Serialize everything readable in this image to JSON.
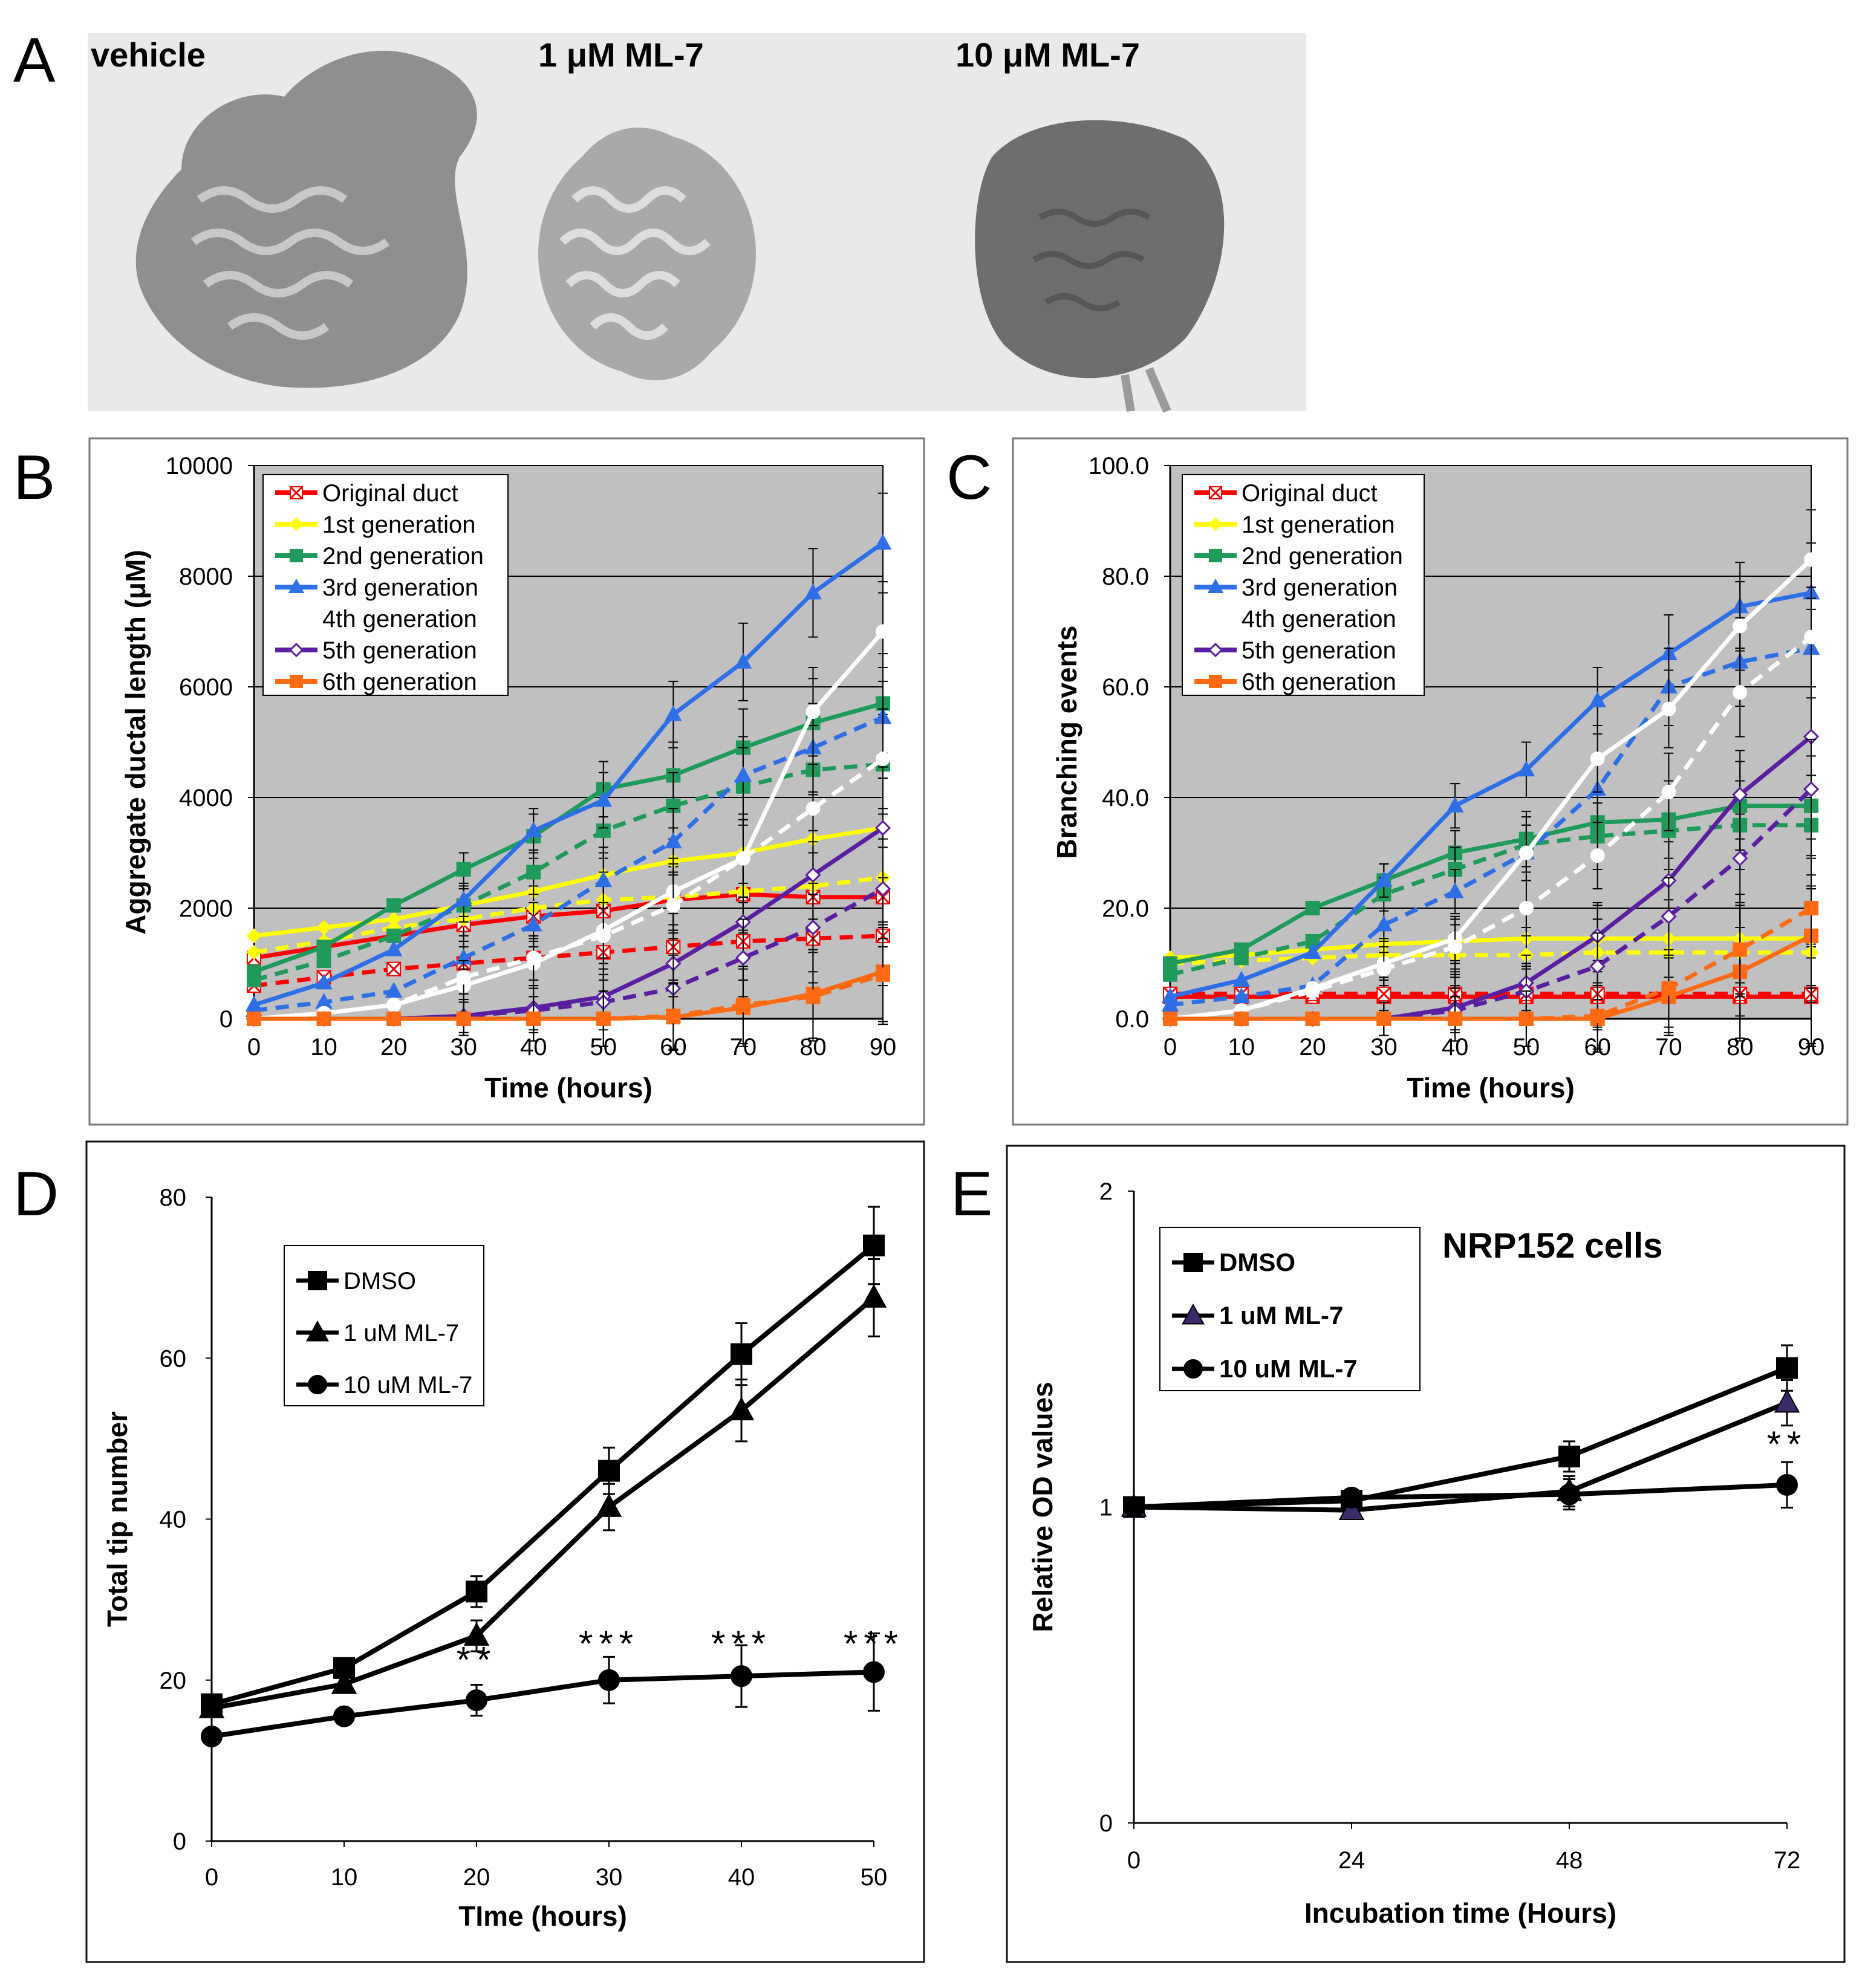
{
  "panels": {
    "A": {
      "label": "A",
      "images": [
        {
          "caption": "vehicle",
          "tone": "#8f8f8f"
        },
        {
          "caption": "1 μM ML-7",
          "tone": "#a9a9a9"
        },
        {
          "caption": "10 μM ML-7",
          "tone": "#6e6e6e"
        }
      ]
    },
    "B": {
      "label": "B"
    },
    "C": {
      "label": "C"
    },
    "D": {
      "label": "D"
    },
    "E": {
      "label": "E",
      "annotation": "NRP152 cells"
    }
  },
  "colors": {
    "plot_bg": "#c0c0c0",
    "original": "#ff0000",
    "gen1": "#ffff00",
    "gen2": "#1f9a5a",
    "gen3": "#2f6fe6",
    "gen4": "#ffffff",
    "gen5": "#5a1fa0",
    "gen6": "#ff6a13"
  },
  "chart_data": [
    {
      "id": "B",
      "type": "line",
      "title": "",
      "xlabel": "Time (hours)",
      "ylabel": "Aggregate ductal length (μM)",
      "x": [
        0,
        10,
        20,
        30,
        40,
        50,
        60,
        70,
        80,
        90
      ],
      "xticks": [
        "0",
        "10",
        "20",
        "30",
        "40",
        "50",
        "60",
        "70",
        "80",
        "90"
      ],
      "ylim": [
        0,
        10000
      ],
      "yticks": [
        "0",
        "2000",
        "4000",
        "6000",
        "8000",
        "10000"
      ],
      "grid": true,
      "legend": "top-left",
      "series": [
        {
          "name": "Original duct",
          "color": "original",
          "marker": "x",
          "style": "solid",
          "values": [
            1100,
            1300,
            1500,
            1700,
            1850,
            1950,
            2150,
            2250,
            2200,
            2200
          ]
        },
        {
          "name": "Original duct (dashed)",
          "color": "original",
          "marker": "x",
          "style": "dashed",
          "values": [
            600,
            750,
            900,
            1000,
            1100,
            1200,
            1300,
            1400,
            1450,
            1500
          ]
        },
        {
          "name": "1st generation",
          "color": "gen1",
          "marker": "diamond",
          "style": "solid",
          "values": [
            1500,
            1650,
            1800,
            2050,
            2300,
            2600,
            2850,
            3000,
            3250,
            3450
          ]
        },
        {
          "name": "1st generation (dashed)",
          "color": "gen1",
          "marker": "diamond",
          "style": "dashed",
          "values": [
            1200,
            1400,
            1650,
            1800,
            2000,
            2150,
            2200,
            2300,
            2400,
            2550
          ]
        },
        {
          "name": "2nd generation",
          "color": "gen2",
          "marker": "square",
          "style": "solid",
          "values": [
            850,
            1300,
            2050,
            2700,
            3300,
            4150,
            4400,
            4900,
            5350,
            5700
          ]
        },
        {
          "name": "2nd generation (dashed)",
          "color": "gen2",
          "marker": "square",
          "style": "dashed",
          "values": [
            700,
            1050,
            1500,
            2050,
            2650,
            3400,
            3850,
            4200,
            4500,
            4600
          ]
        },
        {
          "name": "3rd generation",
          "color": "gen3",
          "marker": "triangle",
          "style": "solid",
          "values": [
            250,
            650,
            1250,
            2150,
            3400,
            3950,
            5500,
            6450,
            7700,
            8600
          ]
        },
        {
          "name": "3rd generation (dashed)",
          "color": "gen3",
          "marker": "triangle",
          "style": "dashed",
          "values": [
            150,
            300,
            500,
            1100,
            1700,
            2500,
            3200,
            4400,
            4900,
            5450
          ]
        },
        {
          "name": "4th generation",
          "color": "gen4",
          "marker": "circle",
          "style": "solid",
          "values": [
            0,
            100,
            250,
            600,
            1000,
            1600,
            2300,
            2900,
            5550,
            7000
          ]
        },
        {
          "name": "4th generation (dashed)",
          "color": "gen4",
          "marker": "circle",
          "style": "dashed",
          "values": [
            0,
            100,
            250,
            750,
            1100,
            1500,
            2050,
            2900,
            3800,
            4700
          ]
        },
        {
          "name": "5th generation",
          "color": "gen5",
          "marker": "opendiamond",
          "style": "solid",
          "values": [
            0,
            0,
            0,
            50,
            200,
            400,
            1000,
            1750,
            2600,
            3450
          ]
        },
        {
          "name": "5th generation (dashed)",
          "color": "gen5",
          "marker": "opendiamond",
          "style": "dashed",
          "values": [
            0,
            0,
            0,
            50,
            150,
            300,
            550,
            1100,
            1650,
            2350
          ]
        },
        {
          "name": "6th generation",
          "color": "gen6",
          "marker": "square",
          "style": "solid",
          "values": [
            0,
            0,
            0,
            0,
            0,
            0,
            30,
            200,
            450,
            850
          ]
        },
        {
          "name": "6th generation (dashed)",
          "color": "gen6",
          "marker": "square",
          "style": "dashed",
          "values": [
            0,
            0,
            0,
            0,
            0,
            0,
            50,
            250,
            400,
            800
          ]
        }
      ]
    },
    {
      "id": "C",
      "type": "line",
      "title": "",
      "xlabel": "Time (hours)",
      "ylabel": "Branching events",
      "x": [
        0,
        10,
        20,
        30,
        40,
        50,
        60,
        70,
        80,
        90
      ],
      "xticks": [
        "0",
        "10",
        "20",
        "30",
        "40",
        "50",
        "60",
        "70",
        "80",
        "90"
      ],
      "ylim": [
        0,
        100
      ],
      "yticks": [
        "0.0",
        "20.0",
        "40.0",
        "60.0",
        "80.0",
        "100.0"
      ],
      "grid": true,
      "legend": "top-left",
      "series": [
        {
          "name": "Original duct",
          "color": "original",
          "marker": "x",
          "style": "solid",
          "values": [
            4,
            4,
            4,
            4,
            4,
            4,
            4,
            4,
            4,
            4
          ]
        },
        {
          "name": "Original duct (dashed)",
          "color": "original",
          "marker": "x",
          "style": "dashed",
          "values": [
            4.5,
            4.5,
            4.5,
            4.5,
            4.5,
            4.5,
            4.5,
            4.5,
            4.5,
            4.5
          ]
        },
        {
          "name": "1st generation",
          "color": "gen1",
          "marker": "diamond",
          "style": "solid",
          "values": [
            11,
            11.5,
            12.5,
            13.5,
            14,
            14.5,
            14.5,
            14.5,
            14.5,
            14.5
          ]
        },
        {
          "name": "1st generation (dashed)",
          "color": "gen1",
          "marker": "diamond",
          "style": "dashed",
          "values": [
            10,
            10.5,
            11,
            11.5,
            11.5,
            11.5,
            12,
            12,
            12,
            12
          ]
        },
        {
          "name": "2nd generation",
          "color": "gen2",
          "marker": "square",
          "style": "solid",
          "values": [
            10,
            12.5,
            20,
            25,
            30,
            32.5,
            35.5,
            36,
            38.5,
            38.5
          ]
        },
        {
          "name": "2nd generation (dashed)",
          "color": "gen2",
          "marker": "square",
          "style": "dashed",
          "values": [
            8,
            11,
            14,
            22.5,
            27,
            31.5,
            33,
            34,
            35,
            35
          ]
        },
        {
          "name": "3rd generation",
          "color": "gen3",
          "marker": "triangle",
          "style": "solid",
          "values": [
            4,
            7,
            12,
            25,
            38.5,
            45,
            57.5,
            66,
            74.5,
            77
          ]
        },
        {
          "name": "3rd generation (dashed)",
          "color": "gen3",
          "marker": "triangle",
          "style": "dashed",
          "values": [
            2.5,
            4,
            6,
            17,
            23,
            30,
            41.5,
            60,
            64.5,
            67
          ]
        },
        {
          "name": "4th generation",
          "color": "gen4",
          "marker": "circle",
          "style": "solid",
          "values": [
            0,
            1.5,
            5.5,
            10,
            14.5,
            30,
            47,
            56,
            71,
            83
          ]
        },
        {
          "name": "4th generation (dashed)",
          "color": "gen4",
          "marker": "circle",
          "style": "dashed",
          "values": [
            0,
            1.5,
            5,
            9,
            13,
            20,
            29.5,
            41,
            59,
            69
          ]
        },
        {
          "name": "5th generation",
          "color": "gen5",
          "marker": "opendiamond",
          "style": "solid",
          "values": [
            0,
            0,
            0,
            0,
            2,
            6.5,
            15,
            25,
            40.5,
            51
          ]
        },
        {
          "name": "5th generation (dashed)",
          "color": "gen5",
          "marker": "opendiamond",
          "style": "dashed",
          "values": [
            0,
            0,
            0,
            0,
            1.5,
            5,
            9.5,
            18.5,
            29,
            41.5
          ]
        },
        {
          "name": "6th generation",
          "color": "gen6",
          "marker": "square",
          "style": "solid",
          "values": [
            0,
            0,
            0,
            0,
            0,
            0,
            0,
            4,
            8.5,
            15
          ]
        },
        {
          "name": "6th generation (dashed)",
          "color": "gen6",
          "marker": "square",
          "style": "dashed",
          "values": [
            0,
            0,
            0,
            0,
            0,
            0,
            0.5,
            5.5,
            12.5,
            20
          ]
        }
      ]
    },
    {
      "id": "D",
      "type": "line",
      "title": "",
      "xlabel": "TIme (hours)",
      "ylabel": "Total tip number",
      "x": [
        0,
        10,
        20,
        30,
        40,
        50
      ],
      "xticks": [
        "0",
        "10",
        "20",
        "30",
        "40",
        "50"
      ],
      "ylim": [
        0,
        80
      ],
      "yticks": [
        "0",
        "20",
        "40",
        "60",
        "80"
      ],
      "grid": false,
      "legend": "top-left",
      "significance": [
        {
          "x": 20,
          "y": 21,
          "text": "**"
        },
        {
          "x": 30,
          "y": 23,
          "text": "***"
        },
        {
          "x": 40,
          "y": 23,
          "text": "***"
        },
        {
          "x": 50,
          "y": 23,
          "text": "***"
        }
      ],
      "series": [
        {
          "name": "DMSO",
          "marker": "square",
          "values": [
            17,
            21.5,
            31,
            46,
            60.5,
            74
          ]
        },
        {
          "name": "1 uM ML-7",
          "marker": "triangle",
          "values": [
            16.5,
            19.5,
            25.5,
            41.5,
            53.5,
            67.5
          ]
        },
        {
          "name": "10 uM ML-7",
          "marker": "circle",
          "values": [
            13,
            15.5,
            17.5,
            20,
            20.5,
            21
          ]
        }
      ]
    },
    {
      "id": "E",
      "type": "line",
      "title": "",
      "xlabel": "Incubation time (Hours)",
      "ylabel": "Relative OD values",
      "x": [
        0,
        24,
        48,
        72
      ],
      "xticks": [
        "0",
        "24",
        "48",
        "72"
      ],
      "ylim": [
        0,
        2
      ],
      "yticks": [
        "0",
        "1",
        "2"
      ],
      "grid": false,
      "legend": "top-left",
      "significance": [
        {
          "x": 72,
          "y": 1.16,
          "text": "**"
        }
      ],
      "series": [
        {
          "name": "DMSO",
          "marker": "square",
          "values": [
            1.0,
            1.02,
            1.16,
            1.44
          ]
        },
        {
          "name": "1 uM ML-7",
          "marker": "triangle",
          "values": [
            1.0,
            0.99,
            1.05,
            1.33
          ]
        },
        {
          "name": "10 uM ML-7",
          "marker": "circle",
          "values": [
            1.0,
            1.03,
            1.04,
            1.07
          ]
        }
      ]
    }
  ]
}
